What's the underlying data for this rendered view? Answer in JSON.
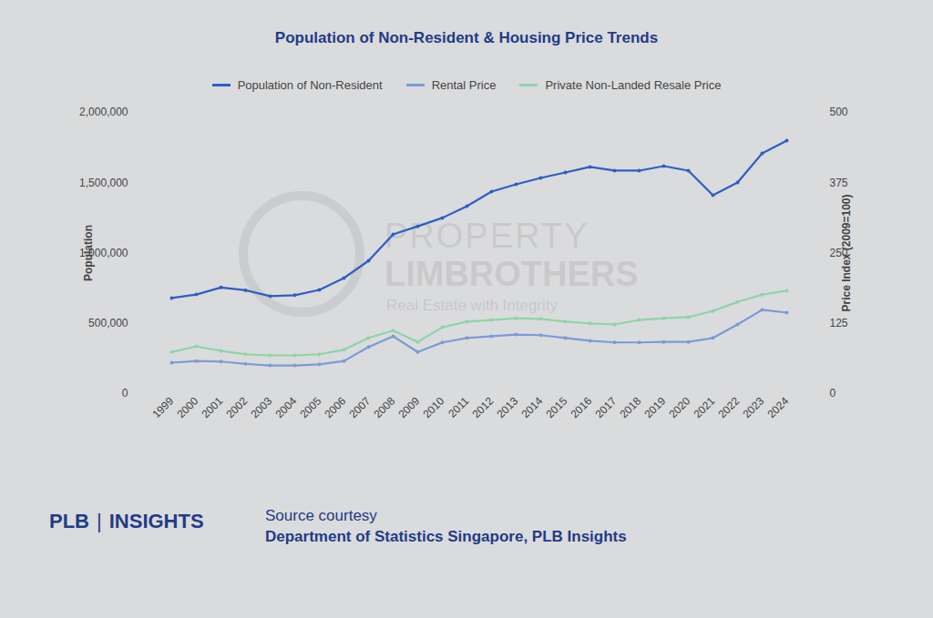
{
  "chart_data": {
    "type": "line",
    "title": "Population of Non-Resident & Housing Price Trends",
    "ylabel": "Population",
    "y2label": "Price Index (2009=100)",
    "categories": [
      "1999",
      "2000",
      "2001",
      "2002",
      "2003",
      "2004",
      "2005",
      "2006",
      "2007",
      "2008",
      "2009",
      "2010",
      "2011",
      "2012",
      "2013",
      "2014",
      "2015",
      "2016",
      "2017",
      "2018",
      "2019",
      "2020",
      "2021",
      "2022",
      "2023",
      "2024"
    ],
    "series": [
      {
        "name": "Population of Non-Resident",
        "color": "#2d5fc4",
        "marker": "circle",
        "values": [
          680000,
          705000,
          755000,
          735000,
          693000,
          700000,
          738000,
          822000,
          945000,
          1133000,
          1190000,
          1250000,
          1333000,
          1437000,
          1489000,
          1534000,
          1573000,
          1612000,
          1586000,
          1586000,
          1618000,
          1586000,
          1411000,
          1502000,
          1709000,
          1799000
        ]
      },
      {
        "name": "Rental Price",
        "color": "#7a9bd8",
        "marker": "circle",
        "axis": "y2",
        "values": [
          55,
          58,
          57,
          53,
          50,
          50,
          52,
          58,
          83,
          102,
          74,
          91,
          99,
          102,
          105,
          104,
          99,
          94,
          91,
          91,
          92,
          92,
          99,
          123,
          149,
          144
        ]
      },
      {
        "name": "Private Non-Landed Resale Price",
        "color": "#8dd5a6",
        "marker": "circle",
        "axis": "y2",
        "values": [
          74,
          84,
          76,
          70,
          68,
          68,
          70,
          78,
          99,
          112,
          92,
          118,
          128,
          131,
          134,
          133,
          128,
          125,
          123,
          131,
          134,
          136,
          147,
          163,
          176,
          183
        ]
      }
    ],
    "ylim": [
      0,
      2000000
    ],
    "yticks": [
      0,
      {
        "value": 500000,
        "label": "500,000"
      },
      {
        "value": 1000000,
        "label": "1,000,000"
      },
      {
        "value": 1500000,
        "label": "1,500,000"
      },
      {
        "value": 2000000,
        "label": "2,000,000"
      }
    ],
    "y2lim": [
      0,
      500
    ],
    "y2ticks": [
      0,
      125,
      250,
      375,
      500
    ],
    "grid": false,
    "legend": "top"
  },
  "watermark": [
    "PROPERTY",
    "LIMBROTHERS",
    "Real Estate with Integrity"
  ],
  "footer": {
    "brand": [
      "PLB",
      "|",
      "INSIGHTS"
    ],
    "source": [
      "Source courtesy",
      "Department of Statistics Singapore, PLB Insights"
    ]
  }
}
